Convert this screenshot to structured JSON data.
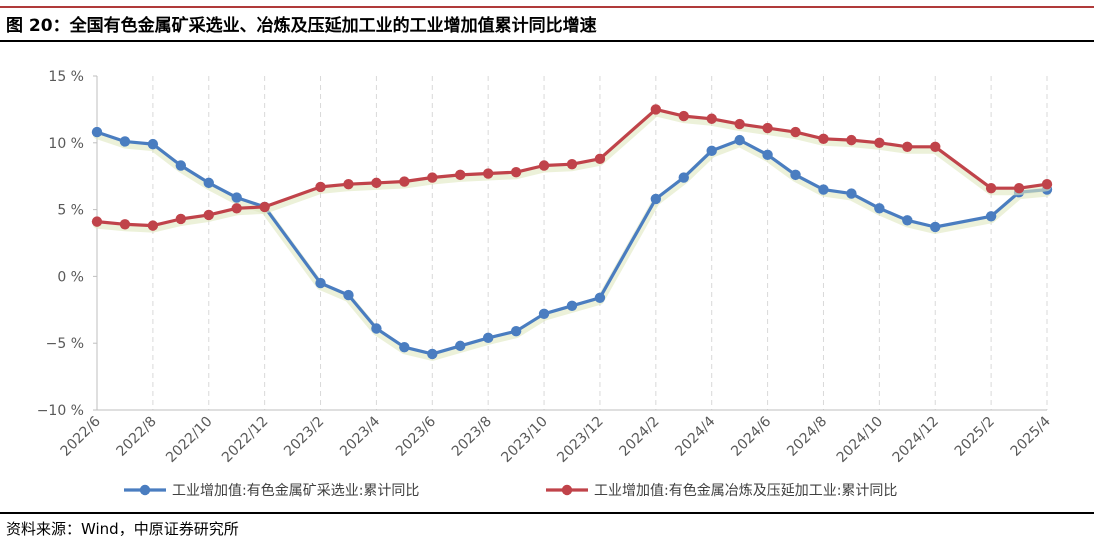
{
  "figure": {
    "title": "图 20：全国有色金属矿采选业、冶炼及压延加工业的工业增加值累计同比增速",
    "source": "资料来源：Wind，中原证券研究所"
  },
  "colors": {
    "accent_rule": "#b03a3a",
    "series_blue": "#4a7dc0",
    "series_red": "#c0434a",
    "grid": "#d9d9d9",
    "axis": "#bfbfbf"
  },
  "chart_data": {
    "type": "line",
    "title": "",
    "xlabel": "",
    "ylabel": "",
    "ylim": [
      -10,
      15
    ],
    "yticks": [
      15,
      10,
      5,
      0,
      -5,
      -10
    ],
    "ytick_labels": [
      "15 %",
      "10 %",
      "5 %",
      "0 %",
      "−5 %",
      "−10 %"
    ],
    "x_tick_labels": [
      "2022/6",
      "2022/8",
      "2022/10",
      "2022/12",
      "2023/2",
      "2023/4",
      "2023/6",
      "2023/8",
      "2023/10",
      "2023/12",
      "2024/2",
      "2024/4",
      "2024/6",
      "2024/8",
      "2024/10",
      "2024/12",
      "2025/2",
      "2025/4"
    ],
    "grid": "vertical dashed",
    "legend_position": "bottom",
    "series": [
      {
        "name": "工业增加值:有色金属矿采选业:累计同比",
        "color": "#4a7dc0",
        "points": [
          [
            "2022/6",
            10.8
          ],
          [
            "2022/7",
            10.1
          ],
          [
            "2022/8",
            9.9
          ],
          [
            "2022/9",
            8.3
          ],
          [
            "2022/10",
            7.0
          ],
          [
            "2022/11",
            5.9
          ],
          [
            "2022/12",
            5.2
          ],
          [
            "2023/2",
            -0.5
          ],
          [
            "2023/3",
            -1.4
          ],
          [
            "2023/4",
            -3.9
          ],
          [
            "2023/5",
            -5.3
          ],
          [
            "2023/6",
            -5.8
          ],
          [
            "2023/7",
            -5.2
          ],
          [
            "2023/8",
            -4.6
          ],
          [
            "2023/9",
            -4.1
          ],
          [
            "2023/10",
            -2.8
          ],
          [
            "2023/11",
            -2.2
          ],
          [
            "2023/12",
            -1.6
          ],
          [
            "2024/2",
            5.8
          ],
          [
            "2024/3",
            7.4
          ],
          [
            "2024/4",
            9.4
          ],
          [
            "2024/5",
            10.2
          ],
          [
            "2024/6",
            9.1
          ],
          [
            "2024/7",
            7.6
          ],
          [
            "2024/8",
            6.5
          ],
          [
            "2024/9",
            6.2
          ],
          [
            "2024/10",
            5.1
          ],
          [
            "2024/11",
            4.2
          ],
          [
            "2024/12",
            3.7
          ],
          [
            "2025/2",
            4.5
          ],
          [
            "2025/3",
            6.3
          ],
          [
            "2025/4",
            6.5
          ]
        ]
      },
      {
        "name": "工业增加值:有色金属冶炼及压延加工业:累计同比",
        "color": "#c0434a",
        "points": [
          [
            "2022/6",
            4.1
          ],
          [
            "2022/7",
            3.9
          ],
          [
            "2022/8",
            3.8
          ],
          [
            "2022/9",
            4.3
          ],
          [
            "2022/10",
            4.6
          ],
          [
            "2022/11",
            5.1
          ],
          [
            "2022/12",
            5.2
          ],
          [
            "2023/2",
            6.7
          ],
          [
            "2023/3",
            6.9
          ],
          [
            "2023/4",
            7.0
          ],
          [
            "2023/5",
            7.1
          ],
          [
            "2023/6",
            7.4
          ],
          [
            "2023/7",
            7.6
          ],
          [
            "2023/8",
            7.7
          ],
          [
            "2023/9",
            7.8
          ],
          [
            "2023/10",
            8.3
          ],
          [
            "2023/11",
            8.4
          ],
          [
            "2023/12",
            8.8
          ],
          [
            "2024/2",
            12.5
          ],
          [
            "2024/3",
            12.0
          ],
          [
            "2024/4",
            11.8
          ],
          [
            "2024/5",
            11.4
          ],
          [
            "2024/6",
            11.1
          ],
          [
            "2024/7",
            10.8
          ],
          [
            "2024/8",
            10.3
          ],
          [
            "2024/9",
            10.2
          ],
          [
            "2024/10",
            10.0
          ],
          [
            "2024/11",
            9.7
          ],
          [
            "2024/12",
            9.7
          ],
          [
            "2025/2",
            6.6
          ],
          [
            "2025/3",
            6.6
          ],
          [
            "2025/4",
            6.9
          ]
        ]
      }
    ]
  }
}
